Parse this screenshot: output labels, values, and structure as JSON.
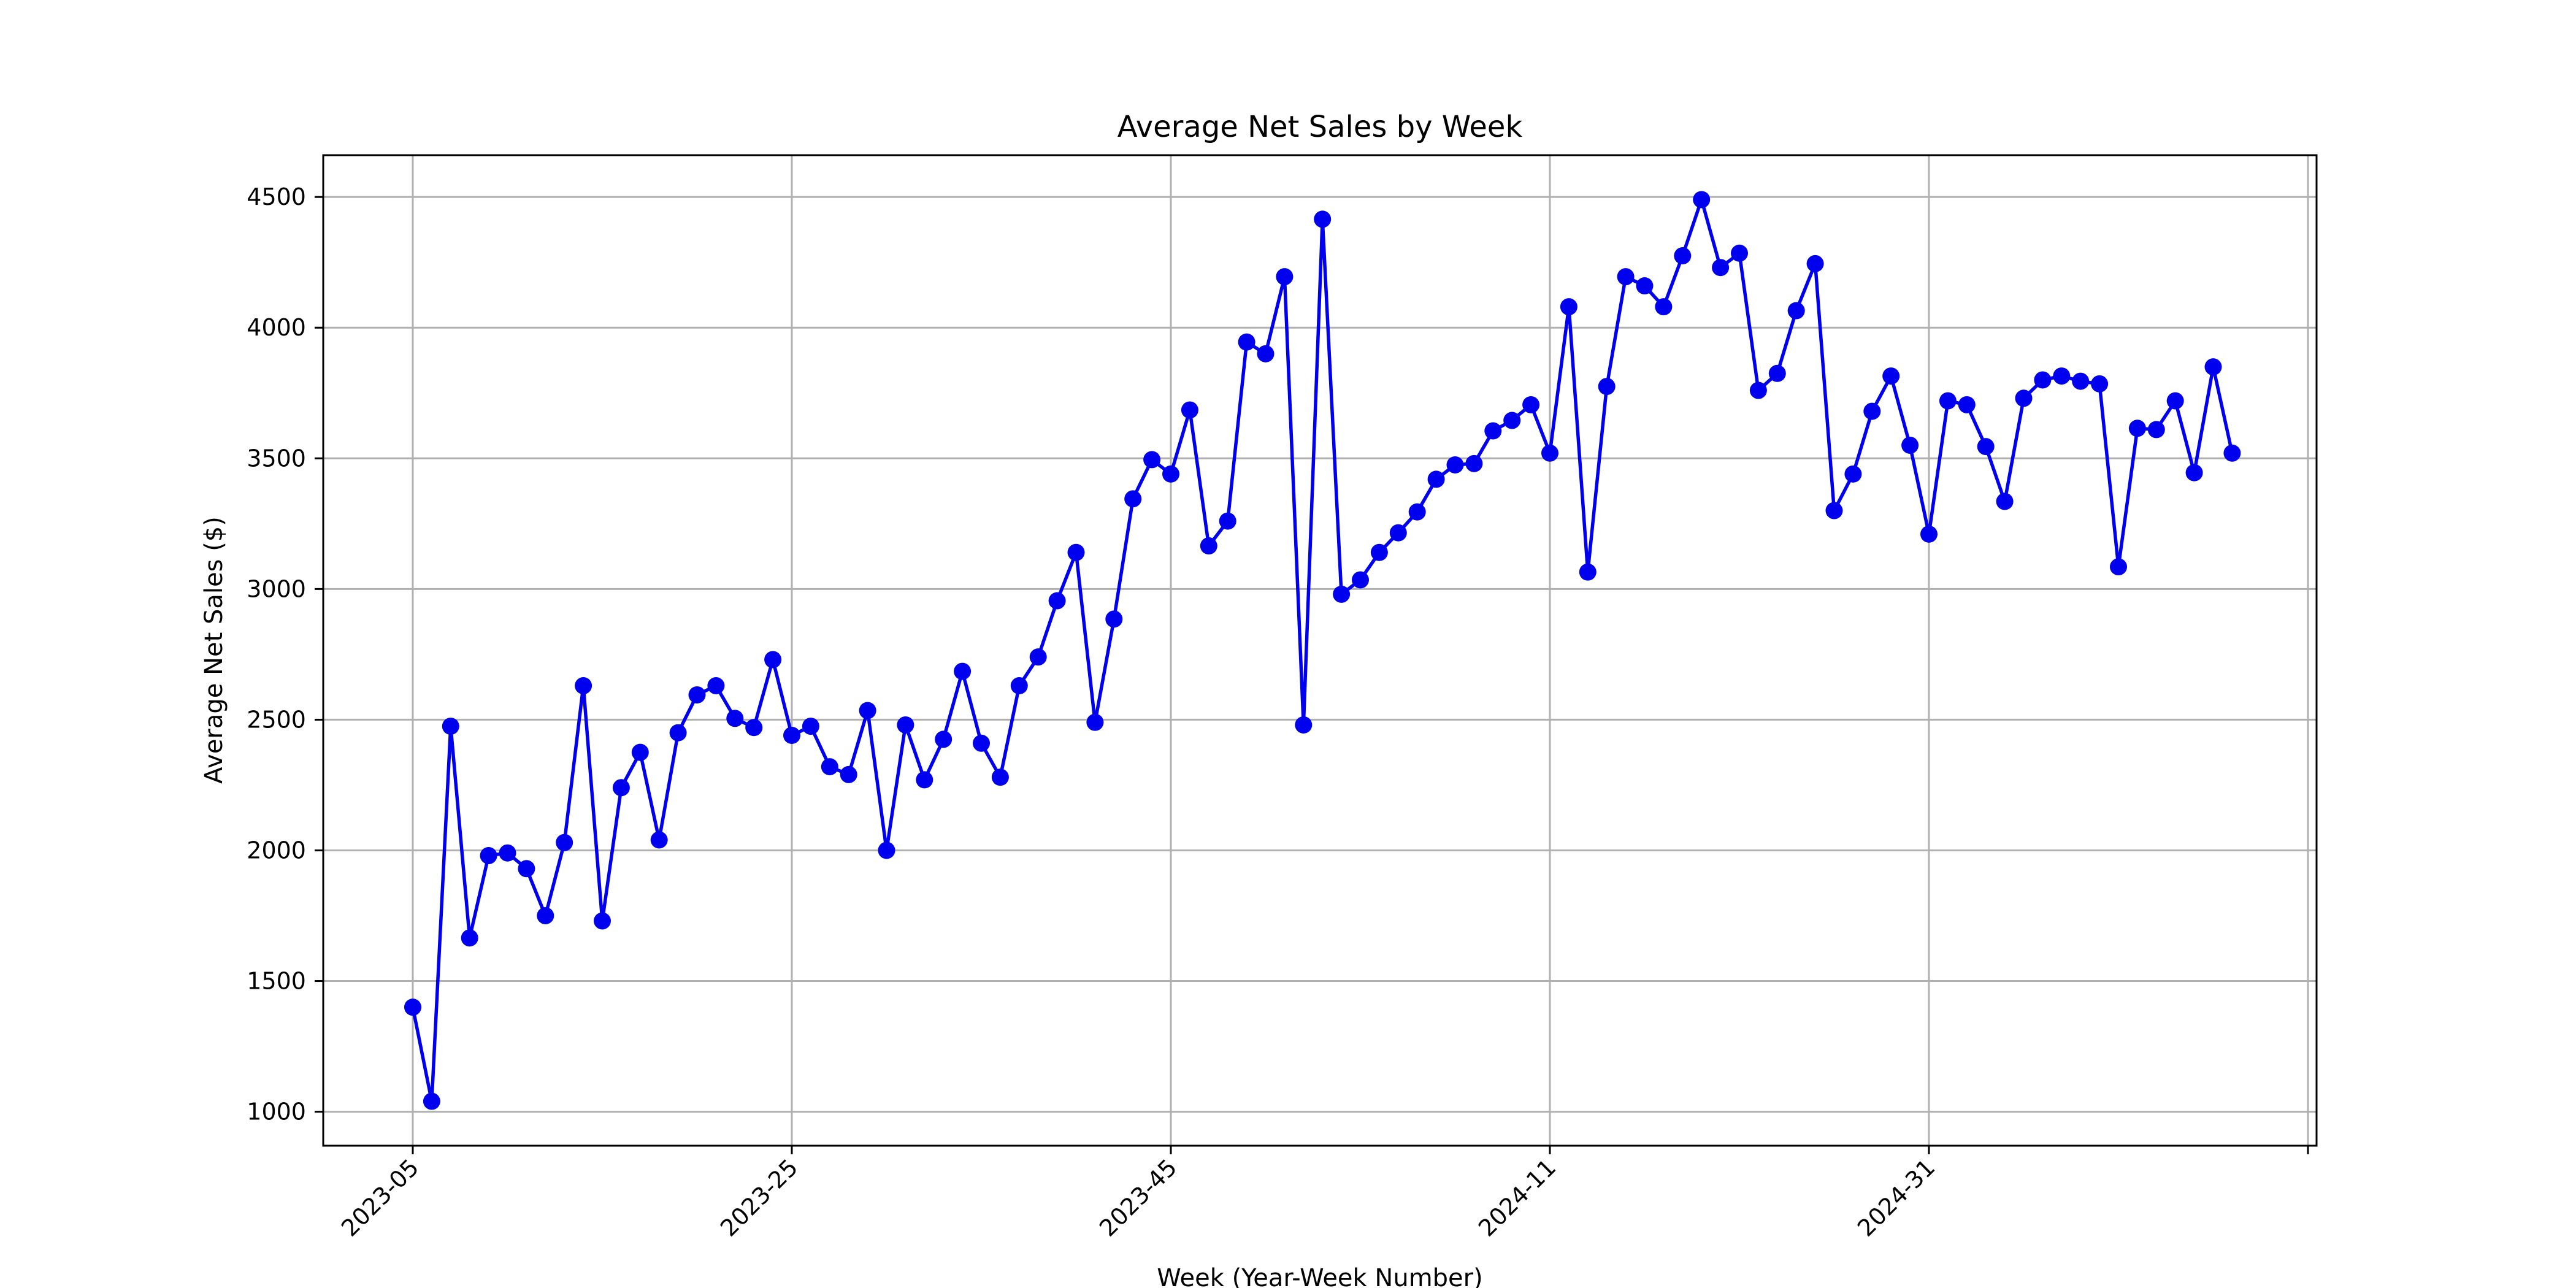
{
  "chart_data": {
    "type": "line",
    "title": "Average Net Sales by Week",
    "xlabel": "Week (Year-Week Number)",
    "ylabel": "Average Net Sales ($)",
    "x_tick_labels": [
      "2023-05",
      "2023-25",
      "2023-45",
      "2024-11",
      "2024-31",
      ""
    ],
    "y_ticks": [
      1000,
      1500,
      2000,
      2500,
      3000,
      3500,
      4000,
      4500
    ],
    "ylim": [
      870,
      4660
    ],
    "grid": true,
    "color": "#0000ee",
    "series": [
      {
        "values": [
          1400,
          1040,
          2475,
          1665,
          1980,
          1990,
          1930,
          1750,
          2030,
          2630,
          1730,
          2240,
          2375,
          2040,
          2450,
          2595,
          2630,
          2505,
          2470,
          2730,
          2440,
          2475,
          2320,
          2290,
          2535,
          2000,
          2480,
          2270,
          2425,
          2685,
          2410,
          2280,
          2630,
          2740,
          2955,
          3140,
          2490,
          2885,
          3345,
          3495,
          3440,
          3685,
          3165,
          3260,
          3945,
          3900,
          4195,
          2480,
          4415,
          2980,
          3035,
          3140,
          3215,
          3295,
          3420,
          3475,
          3480,
          3605,
          3645,
          3705,
          3520,
          4080,
          3065,
          3775,
          4195,
          4160,
          4080,
          4275,
          4490,
          4230,
          4285,
          3760,
          3825,
          4065,
          4245,
          3300,
          3440,
          3680,
          3815,
          3550,
          3210,
          3720,
          3705,
          3545,
          3335,
          3730,
          3800,
          3815,
          3795,
          3785,
          3085,
          3615,
          3610,
          3720,
          3445,
          3850,
          3520
        ]
      }
    ]
  }
}
